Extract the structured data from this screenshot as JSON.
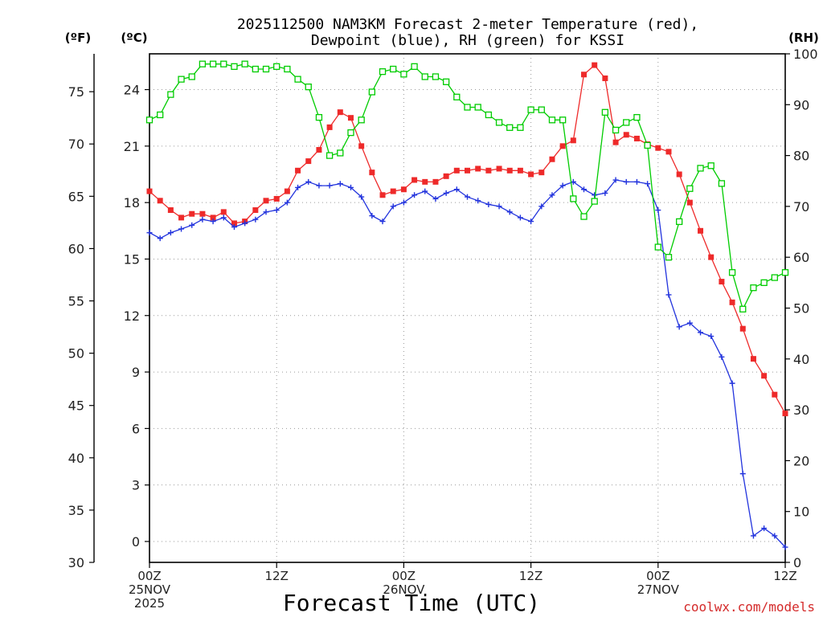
{
  "colors": {
    "temp": "#ee2a2a",
    "dewpoint": "#2233dd",
    "rh": "#00cc00",
    "grid": "#9a9a9a",
    "credit": "#d42a2a"
  },
  "chart_data": {
    "type": "line",
    "title_line1": "2025112500 NAM3KM Forecast 2-meter Temperature (red),",
    "title_line2": "Dewpoint (blue), RH (green) for KSSI",
    "xlabel": "Forecast Time (UTC)",
    "credit": "coolwx.com/models",
    "left_outer_axis": {
      "label": "(ºF)",
      "ticks": [
        "30",
        "35",
        "40",
        "45",
        "50",
        "55",
        "60",
        "65",
        "70",
        "75"
      ]
    },
    "left_inner_axis": {
      "label": "(ºC)",
      "ticks": [
        "0",
        "3",
        "6",
        "9",
        "12",
        "15",
        "18",
        "21",
        "24"
      ],
      "ylim": [
        -1.11,
        25.9
      ]
    },
    "right_axis": {
      "label": "(RH)",
      "ticks": [
        "0",
        "10",
        "20",
        "30",
        "40",
        "50",
        "60",
        "70",
        "80",
        "90",
        "100"
      ],
      "ylim": [
        0,
        100
      ]
    },
    "x_range_hours": [
      0,
      60
    ],
    "x_ticks": [
      {
        "h": 0,
        "line1": "00Z",
        "line2": "25NOV",
        "line3": "2025"
      },
      {
        "h": 12,
        "line1": "12Z",
        "line2": "",
        "line3": ""
      },
      {
        "h": 24,
        "line1": "00Z",
        "line2": "26NOV",
        "line3": ""
      },
      {
        "h": 36,
        "line1": "12Z",
        "line2": "",
        "line3": ""
      },
      {
        "h": 48,
        "line1": "00Z",
        "line2": "27NOV",
        "line3": ""
      },
      {
        "h": 60,
        "line1": "12Z",
        "line2": "",
        "line3": ""
      }
    ],
    "series": [
      {
        "name": "Temperature",
        "units": "°C",
        "color": "#ee2a2a",
        "marker": "filled-square",
        "x": [
          0,
          1,
          2,
          3,
          4,
          5,
          6,
          7,
          8,
          9,
          10,
          11,
          12,
          13,
          14,
          15,
          16,
          17,
          18,
          19,
          20,
          21,
          22,
          23,
          24,
          25,
          26,
          27,
          28,
          29,
          30,
          31,
          32,
          33,
          34,
          35,
          36,
          37,
          38,
          39,
          40,
          41,
          42,
          43,
          44,
          45,
          46,
          47,
          48,
          49,
          50,
          51,
          52,
          53,
          54,
          55,
          56,
          57,
          58,
          59,
          60
        ],
        "values": [
          18.6,
          18.1,
          17.6,
          17.2,
          17.4,
          17.4,
          17.2,
          17.5,
          16.9,
          17.0,
          17.6,
          18.1,
          18.2,
          18.6,
          19.7,
          20.2,
          20.8,
          22.0,
          22.8,
          22.5,
          21.0,
          19.6,
          18.4,
          18.6,
          18.7,
          19.2,
          19.1,
          19.1,
          19.4,
          19.7,
          19.7,
          19.8,
          19.7,
          19.8,
          19.7,
          19.7,
          19.5,
          19.6,
          20.3,
          21.0,
          21.3,
          24.8,
          25.3,
          24.6,
          21.2,
          21.6,
          21.4,
          21.1,
          20.9,
          20.7,
          19.5,
          18.0,
          16.5,
          15.1,
          13.8,
          12.7,
          11.3,
          9.7,
          8.8,
          7.8,
          6.8
        ]
      },
      {
        "name": "Dewpoint",
        "units": "°C",
        "color": "#2233dd",
        "marker": "plus",
        "x": [
          0,
          1,
          2,
          3,
          4,
          5,
          6,
          7,
          8,
          9,
          10,
          11,
          12,
          13,
          14,
          15,
          16,
          17,
          18,
          19,
          20,
          21,
          22,
          23,
          24,
          25,
          26,
          27,
          28,
          29,
          30,
          31,
          32,
          33,
          34,
          35,
          36,
          37,
          38,
          39,
          40,
          41,
          42,
          43,
          44,
          45,
          46,
          47,
          48,
          49,
          50,
          51,
          52,
          53,
          54,
          55,
          56,
          57,
          58,
          59,
          60
        ],
        "values": [
          16.4,
          16.1,
          16.4,
          16.6,
          16.8,
          17.1,
          17.0,
          17.2,
          16.7,
          16.9,
          17.1,
          17.5,
          17.6,
          18.0,
          18.8,
          19.1,
          18.9,
          18.9,
          19.0,
          18.8,
          18.3,
          17.3,
          17.0,
          17.8,
          18.0,
          18.4,
          18.6,
          18.2,
          18.5,
          18.7,
          18.3,
          18.1,
          17.9,
          17.8,
          17.5,
          17.2,
          17.0,
          17.8,
          18.4,
          18.9,
          19.1,
          18.7,
          18.4,
          18.5,
          19.2,
          19.1,
          19.1,
          19.0,
          17.6,
          13.1,
          11.4,
          11.6,
          11.1,
          10.9,
          9.8,
          8.4,
          3.6,
          0.3,
          0.7,
          0.3,
          -0.3
        ]
      },
      {
        "name": "RH",
        "units": "%",
        "color": "#00cc00",
        "marker": "open-square",
        "x": [
          0,
          1,
          2,
          3,
          4,
          5,
          6,
          7,
          8,
          9,
          10,
          11,
          12,
          13,
          14,
          15,
          16,
          17,
          18,
          19,
          20,
          21,
          22,
          23,
          24,
          25,
          26,
          27,
          28,
          29,
          30,
          31,
          32,
          33,
          34,
          35,
          36,
          37,
          38,
          39,
          40,
          41,
          42,
          43,
          44,
          45,
          46,
          47,
          48,
          49,
          50,
          51,
          52,
          53,
          54,
          55,
          56,
          57,
          58,
          59,
          60
        ],
        "values": [
          87,
          88,
          92,
          95,
          95.5,
          98,
          98,
          98,
          97.5,
          98,
          97,
          97,
          97.5,
          97,
          95,
          93.5,
          87.5,
          80,
          80.5,
          84.5,
          87,
          92.5,
          96.5,
          97,
          96,
          97.5,
          95.5,
          95.5,
          94.5,
          91.5,
          89.5,
          89.5,
          88,
          86.5,
          85.5,
          85.5,
          89,
          89,
          87,
          87,
          71.5,
          68,
          71,
          88.5,
          85,
          86.5,
          87.5,
          82,
          62,
          60,
          67,
          73.5,
          77.5,
          78,
          74.5,
          57,
          49.8,
          54,
          55,
          56,
          57
        ]
      }
    ]
  }
}
